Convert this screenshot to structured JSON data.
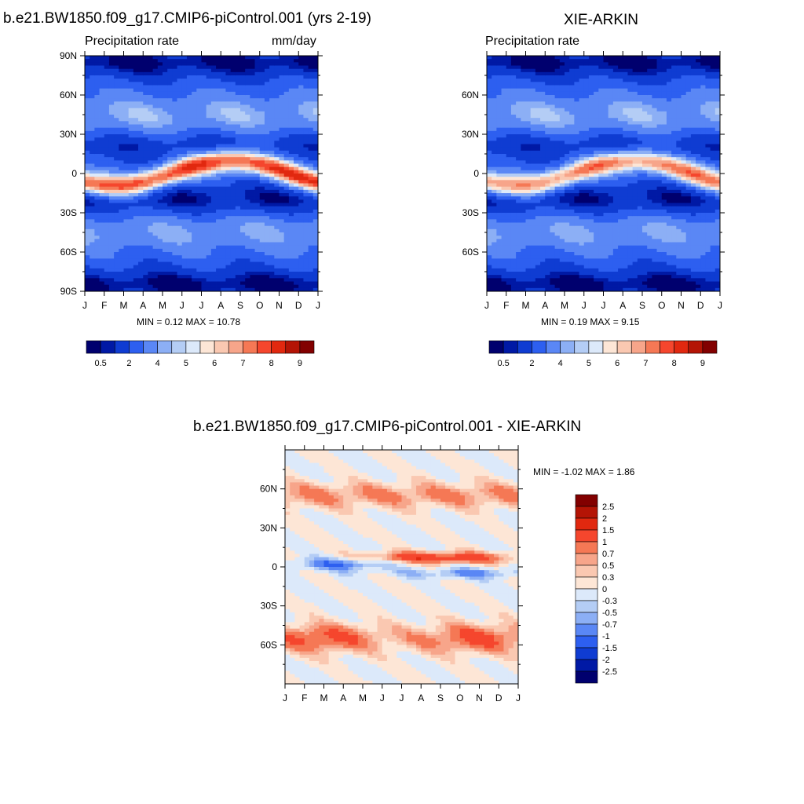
{
  "chart_data": [
    {
      "type": "heatmap",
      "panel": "model",
      "title": "b.e21.BW1850.f09_g17.CMIP6-piControl.001 (yrs 2-19)",
      "left_label": "Precipitation rate",
      "right_label": "mm/day",
      "x_ticks": [
        "J",
        "F",
        "M",
        "A",
        "M",
        "J",
        "J",
        "A",
        "S",
        "O",
        "N",
        "D",
        "J"
      ],
      "y_ticks": [
        "90N",
        "60N",
        "30N",
        "0",
        "30S",
        "60S",
        "90S"
      ],
      "ylim": [
        -90,
        90
      ],
      "min_label": "MIN =",
      "min": "0.12",
      "max_label": "MAX =",
      "max": "10.78",
      "colorbar_levels": [
        "0.5",
        "2",
        "4",
        "5",
        "6",
        "7",
        "8",
        "9"
      ]
    },
    {
      "type": "heatmap",
      "panel": "obs",
      "title": "XIE-ARKIN",
      "left_label": "Precipitation rate",
      "x_ticks": [
        "J",
        "F",
        "M",
        "A",
        "M",
        "J",
        "J",
        "A",
        "S",
        "O",
        "N",
        "D",
        "J"
      ],
      "y_ticks": [
        "60N",
        "30N",
        "0",
        "30S",
        "60S"
      ],
      "ylim": [
        -90,
        90
      ],
      "min_label": "MIN =",
      "min": "0.19",
      "max_label": "MAX =",
      "max": "9.15",
      "colorbar_levels": [
        "0.5",
        "2",
        "4",
        "5",
        "6",
        "7",
        "8",
        "9"
      ]
    },
    {
      "type": "heatmap",
      "panel": "diff",
      "title": "b.e21.BW1850.f09_g17.CMIP6-piControl.001 - XIE-ARKIN",
      "x_ticks": [
        "J",
        "F",
        "M",
        "A",
        "M",
        "J",
        "J",
        "A",
        "S",
        "O",
        "N",
        "D",
        "J"
      ],
      "y_ticks": [
        "60N",
        "30N",
        "0",
        "30S",
        "60S"
      ],
      "ylim": [
        -90,
        90
      ],
      "min_label": "MIN =",
      "min": "-1.02",
      "max_label": "MAX =",
      "max": "1.86",
      "colorbar_levels": [
        "2.5",
        "2",
        "1.5",
        "1",
        "0.7",
        "0.5",
        "0.3",
        "0",
        "-0.3",
        "-0.5",
        "-0.7",
        "-1",
        "-1.5",
        "-2",
        "-2.5"
      ]
    }
  ],
  "colors": {
    "seq": [
      "#00006e",
      "#0019a5",
      "#0f3cd2",
      "#2d5ff0",
      "#5a87f5",
      "#8caff5",
      "#b4cdf5",
      "#dce9fa",
      "#fde6d6",
      "#fac8b1",
      "#f7a58a",
      "#f57855",
      "#f5462d",
      "#e1280f",
      "#b41405",
      "#820000"
    ],
    "div": [
      "#820000",
      "#b41405",
      "#e1280f",
      "#f5462d",
      "#f57855",
      "#f7a58a",
      "#fac8b1",
      "#fde6d6",
      "#dce9fa",
      "#b4cdf5",
      "#8caff5",
      "#5a87f5",
      "#2d5ff0",
      "#0f3cd2",
      "#0019a5",
      "#00006e"
    ]
  }
}
